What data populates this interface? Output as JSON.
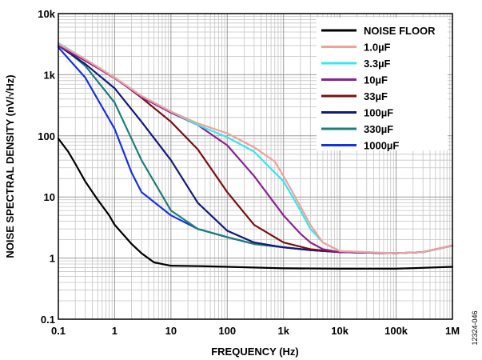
{
  "figure_id": "12324-046",
  "chart_data": {
    "type": "line",
    "xlabel": "FREQUENCY (Hz)",
    "ylabel": "NOISE SPECTRAL DENSITY (nV/√Hz)",
    "x_scale": "log",
    "y_scale": "log",
    "xlim": [
      0.1,
      1000000
    ],
    "ylim": [
      0.1,
      10000
    ],
    "x_ticks": [
      {
        "value": 0.1,
        "label": "0.1"
      },
      {
        "value": 1,
        "label": "1"
      },
      {
        "value": 10,
        "label": "10"
      },
      {
        "value": 100,
        "label": "100"
      },
      {
        "value": 1000,
        "label": "1k"
      },
      {
        "value": 10000,
        "label": "10k"
      },
      {
        "value": 100000,
        "label": "100k"
      },
      {
        "value": 1000000,
        "label": "1M"
      }
    ],
    "y_ticks": [
      {
        "value": 0.1,
        "label": "0.1"
      },
      {
        "value": 1,
        "label": "1"
      },
      {
        "value": 10,
        "label": "10"
      },
      {
        "value": 100,
        "label": "100"
      },
      {
        "value": 1000,
        "label": "1k"
      },
      {
        "value": 10000,
        "label": "10k"
      }
    ],
    "grid": true,
    "legend_position": "top-right",
    "series": [
      {
        "name": "NOISE FLOOR",
        "color": "#000000",
        "x": [
          0.1,
          0.15,
          0.2,
          0.3,
          0.5,
          0.8,
          1,
          1.5,
          2,
          3,
          5,
          10,
          30,
          100,
          1000,
          10000,
          100000,
          1000000
        ],
        "y": [
          90,
          55,
          35,
          18,
          9,
          5,
          3.5,
          2.3,
          1.7,
          1.2,
          0.85,
          0.75,
          0.74,
          0.72,
          0.68,
          0.67,
          0.67,
          0.72
        ]
      },
      {
        "name": "1.0µF",
        "color": "#f4a09a",
        "x": [
          0.1,
          0.3,
          1,
          3,
          10,
          30,
          100,
          300,
          700,
          1000,
          2000,
          3000,
          5000,
          10000,
          100000,
          300000,
          1000000
        ],
        "y": [
          3200,
          1800,
          900,
          450,
          250,
          160,
          110,
          65,
          38,
          22,
          7,
          3.5,
          1.8,
          1.3,
          1.2,
          1.25,
          1.6
        ]
      },
      {
        "name": "3.3µF",
        "color": "#33e8f0",
        "x": [
          0.1,
          0.3,
          1,
          3,
          10,
          30,
          100,
          300,
          1000,
          2000,
          3000,
          5000,
          10000,
          100000,
          300000,
          1000000
        ],
        "y": [
          3300,
          1800,
          900,
          450,
          250,
          150,
          95,
          55,
          18,
          6,
          3,
          1.8,
          1.3,
          1.2,
          1.25,
          1.6
        ]
      },
      {
        "name": "10µF",
        "color": "#8a2292",
        "x": [
          0.1,
          0.3,
          1,
          3,
          10,
          30,
          100,
          300,
          1000,
          2000,
          3000,
          5000,
          10000,
          100000,
          300000,
          1000000
        ],
        "y": [
          3000,
          1700,
          880,
          430,
          240,
          150,
          70,
          22,
          5,
          2.5,
          1.8,
          1.4,
          1.25,
          1.2,
          1.25,
          1.6
        ]
      },
      {
        "name": "33µF",
        "color": "#7b0f12",
        "x": [
          0.1,
          0.3,
          1,
          3,
          10,
          30,
          100,
          300,
          1000,
          3000,
          10000,
          100000,
          300000,
          1000000
        ],
        "y": [
          3000,
          1700,
          900,
          420,
          170,
          60,
          12,
          3.5,
          1.8,
          1.4,
          1.25,
          1.2,
          1.25,
          1.6
        ]
      },
      {
        "name": "100µF",
        "color": "#141a7a",
        "x": [
          0.1,
          0.3,
          1,
          3,
          10,
          30,
          100,
          300,
          1000,
          3000,
          10000,
          100000,
          300000,
          1000000
        ],
        "y": [
          3000,
          1500,
          600,
          170,
          40,
          8,
          2.8,
          1.8,
          1.5,
          1.35,
          1.25,
          1.2,
          1.25,
          1.6
        ]
      },
      {
        "name": "330µF",
        "color": "#1a7f7a",
        "x": [
          0.1,
          0.3,
          1,
          3,
          10,
          30,
          100,
          300,
          1000,
          3000,
          10000,
          100000,
          300000,
          1000000
        ],
        "y": [
          3200,
          1400,
          350,
          40,
          6,
          3,
          2.2,
          1.7,
          1.5,
          1.35,
          1.25,
          1.2,
          1.25,
          1.6
        ]
      },
      {
        "name": "1000µF",
        "color": "#1632e6",
        "x": [
          0.1,
          0.3,
          1,
          2,
          3,
          10,
          30,
          100,
          300,
          1000,
          3000,
          10000,
          100000,
          300000,
          1000000
        ],
        "y": [
          2800,
          900,
          130,
          25,
          12,
          5,
          3,
          2.2,
          1.7,
          1.5,
          1.35,
          1.25,
          1.2,
          1.25,
          1.6
        ]
      }
    ]
  }
}
